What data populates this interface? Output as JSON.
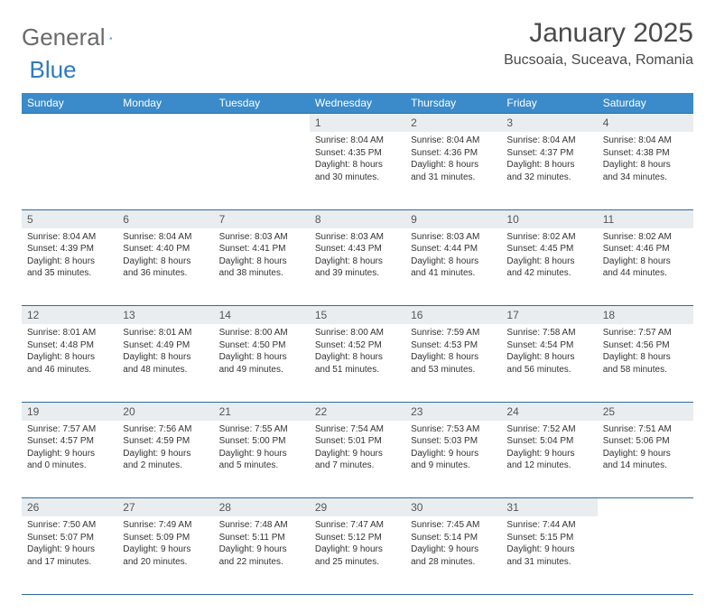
{
  "logo": {
    "text1": "General",
    "text2": "Blue"
  },
  "title": "January 2025",
  "location": "Bucsoaia, Suceava, Romania",
  "colors": {
    "header_bg": "#3b8bca",
    "header_text": "#ffffff",
    "daynum_bg": "#e9edf0",
    "border": "#2f6aa0",
    "text": "#333333",
    "title_text": "#4a4a4a",
    "logo_gray": "#6a6a6a",
    "logo_blue": "#2f7ac0"
  },
  "weekdays": [
    "Sunday",
    "Monday",
    "Tuesday",
    "Wednesday",
    "Thursday",
    "Friday",
    "Saturday"
  ],
  "weeks": [
    [
      null,
      null,
      null,
      {
        "day": "1",
        "sunrise": "8:04 AM",
        "sunset": "4:35 PM",
        "daylight": "8 hours and 30 minutes."
      },
      {
        "day": "2",
        "sunrise": "8:04 AM",
        "sunset": "4:36 PM",
        "daylight": "8 hours and 31 minutes."
      },
      {
        "day": "3",
        "sunrise": "8:04 AM",
        "sunset": "4:37 PM",
        "daylight": "8 hours and 32 minutes."
      },
      {
        "day": "4",
        "sunrise": "8:04 AM",
        "sunset": "4:38 PM",
        "daylight": "8 hours and 34 minutes."
      }
    ],
    [
      {
        "day": "5",
        "sunrise": "8:04 AM",
        "sunset": "4:39 PM",
        "daylight": "8 hours and 35 minutes."
      },
      {
        "day": "6",
        "sunrise": "8:04 AM",
        "sunset": "4:40 PM",
        "daylight": "8 hours and 36 minutes."
      },
      {
        "day": "7",
        "sunrise": "8:03 AM",
        "sunset": "4:41 PM",
        "daylight": "8 hours and 38 minutes."
      },
      {
        "day": "8",
        "sunrise": "8:03 AM",
        "sunset": "4:43 PM",
        "daylight": "8 hours and 39 minutes."
      },
      {
        "day": "9",
        "sunrise": "8:03 AM",
        "sunset": "4:44 PM",
        "daylight": "8 hours and 41 minutes."
      },
      {
        "day": "10",
        "sunrise": "8:02 AM",
        "sunset": "4:45 PM",
        "daylight": "8 hours and 42 minutes."
      },
      {
        "day": "11",
        "sunrise": "8:02 AM",
        "sunset": "4:46 PM",
        "daylight": "8 hours and 44 minutes."
      }
    ],
    [
      {
        "day": "12",
        "sunrise": "8:01 AM",
        "sunset": "4:48 PM",
        "daylight": "8 hours and 46 minutes."
      },
      {
        "day": "13",
        "sunrise": "8:01 AM",
        "sunset": "4:49 PM",
        "daylight": "8 hours and 48 minutes."
      },
      {
        "day": "14",
        "sunrise": "8:00 AM",
        "sunset": "4:50 PM",
        "daylight": "8 hours and 49 minutes."
      },
      {
        "day": "15",
        "sunrise": "8:00 AM",
        "sunset": "4:52 PM",
        "daylight": "8 hours and 51 minutes."
      },
      {
        "day": "16",
        "sunrise": "7:59 AM",
        "sunset": "4:53 PM",
        "daylight": "8 hours and 53 minutes."
      },
      {
        "day": "17",
        "sunrise": "7:58 AM",
        "sunset": "4:54 PM",
        "daylight": "8 hours and 56 minutes."
      },
      {
        "day": "18",
        "sunrise": "7:57 AM",
        "sunset": "4:56 PM",
        "daylight": "8 hours and 58 minutes."
      }
    ],
    [
      {
        "day": "19",
        "sunrise": "7:57 AM",
        "sunset": "4:57 PM",
        "daylight": "9 hours and 0 minutes."
      },
      {
        "day": "20",
        "sunrise": "7:56 AM",
        "sunset": "4:59 PM",
        "daylight": "9 hours and 2 minutes."
      },
      {
        "day": "21",
        "sunrise": "7:55 AM",
        "sunset": "5:00 PM",
        "daylight": "9 hours and 5 minutes."
      },
      {
        "day": "22",
        "sunrise": "7:54 AM",
        "sunset": "5:01 PM",
        "daylight": "9 hours and 7 minutes."
      },
      {
        "day": "23",
        "sunrise": "7:53 AM",
        "sunset": "5:03 PM",
        "daylight": "9 hours and 9 minutes."
      },
      {
        "day": "24",
        "sunrise": "7:52 AM",
        "sunset": "5:04 PM",
        "daylight": "9 hours and 12 minutes."
      },
      {
        "day": "25",
        "sunrise": "7:51 AM",
        "sunset": "5:06 PM",
        "daylight": "9 hours and 14 minutes."
      }
    ],
    [
      {
        "day": "26",
        "sunrise": "7:50 AM",
        "sunset": "5:07 PM",
        "daylight": "9 hours and 17 minutes."
      },
      {
        "day": "27",
        "sunrise": "7:49 AM",
        "sunset": "5:09 PM",
        "daylight": "9 hours and 20 minutes."
      },
      {
        "day": "28",
        "sunrise": "7:48 AM",
        "sunset": "5:11 PM",
        "daylight": "9 hours and 22 minutes."
      },
      {
        "day": "29",
        "sunrise": "7:47 AM",
        "sunset": "5:12 PM",
        "daylight": "9 hours and 25 minutes."
      },
      {
        "day": "30",
        "sunrise": "7:45 AM",
        "sunset": "5:14 PM",
        "daylight": "9 hours and 28 minutes."
      },
      {
        "day": "31",
        "sunrise": "7:44 AM",
        "sunset": "5:15 PM",
        "daylight": "9 hours and 31 minutes."
      },
      null
    ]
  ],
  "labels": {
    "sunrise": "Sunrise:",
    "sunset": "Sunset:",
    "daylight": "Daylight:"
  }
}
